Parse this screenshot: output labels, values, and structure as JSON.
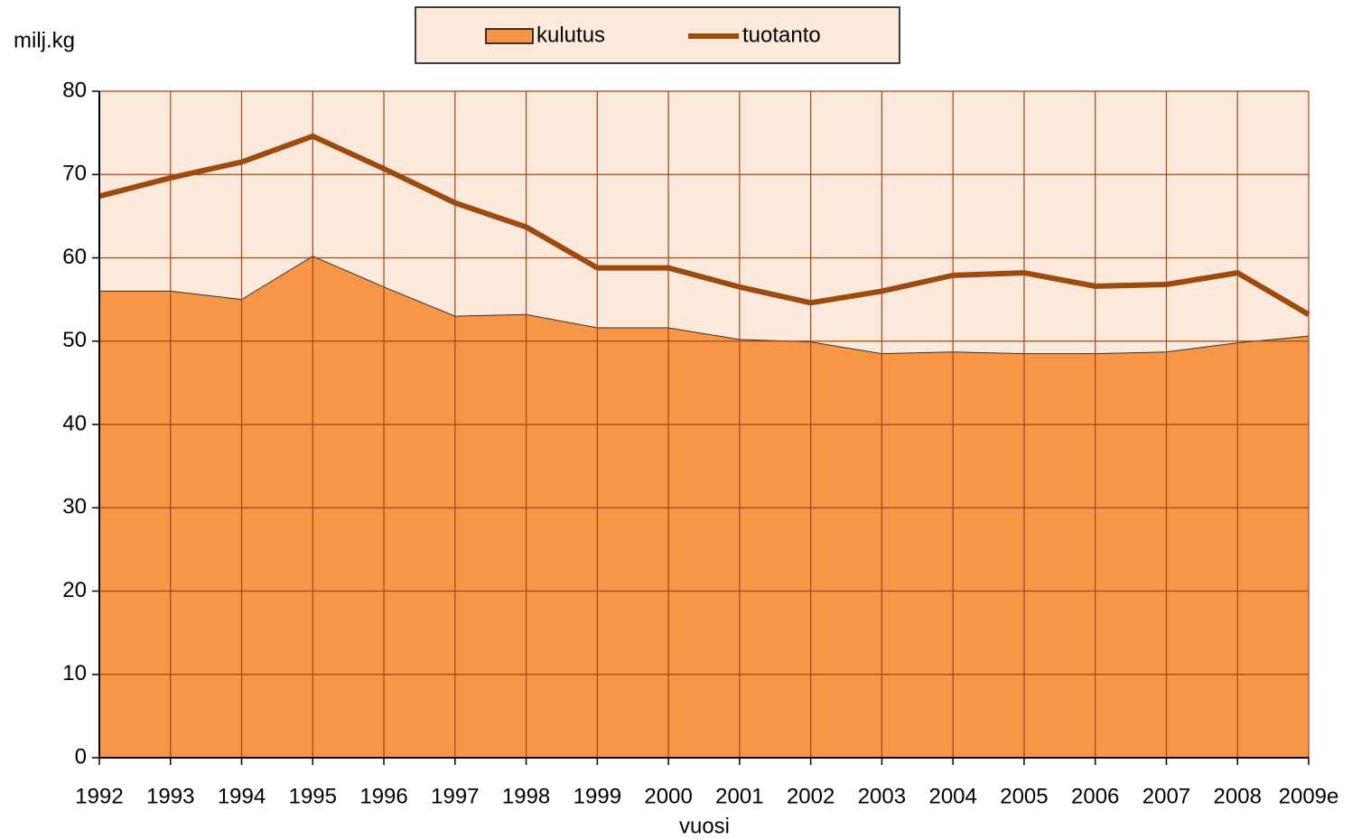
{
  "chart_data": {
    "type": "area_line",
    "y_label": "milj.kg",
    "x_label": "vuosi",
    "categories": [
      "1992",
      "1993",
      "1994",
      "1995",
      "1996",
      "1997",
      "1998",
      "1999",
      "2000",
      "2001",
      "2002",
      "2003",
      "2004",
      "2005",
      "2006",
      "2007",
      "2008",
      "2009e"
    ],
    "series": [
      {
        "name": "kulutus",
        "kind": "area",
        "color": "#f79646",
        "values": [
          56,
          56,
          55,
          60.2,
          56.5,
          53,
          53.2,
          51.6,
          51.6,
          50.2,
          49.9,
          48.5,
          48.7,
          48.5,
          48.5,
          48.7,
          49.8,
          50.6
        ]
      },
      {
        "name": "tuotanto",
        "kind": "line",
        "color": "#9c4a0d",
        "values": [
          67.4,
          69.6,
          71.5,
          74.6,
          70.7,
          66.6,
          63.7,
          58.8,
          58.8,
          56.5,
          54.6,
          56,
          57.9,
          58.2,
          56.6,
          56.8,
          58.2,
          53.2
        ]
      }
    ],
    "ylim": [
      0,
      80
    ],
    "yticks": [
      0,
      10,
      20,
      30,
      40,
      50,
      60,
      70,
      80
    ],
    "grid": true,
    "legend": "top"
  }
}
